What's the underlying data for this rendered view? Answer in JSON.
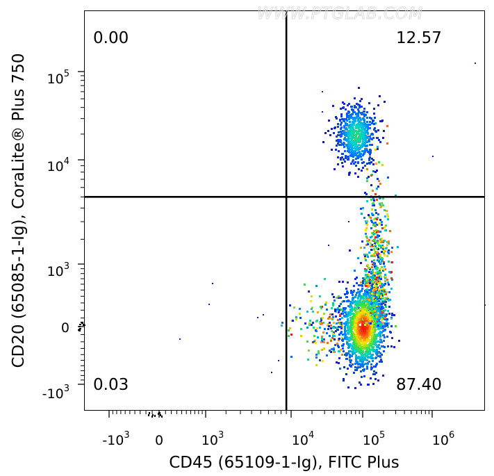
{
  "watermark": "WWW.PTGLAB.COM",
  "chart_data": {
    "type": "scatter",
    "subtype": "flow-cytometry-pseudocolor-density",
    "xlabel": "CD45 (65109-1-Ig), FITC Plus",
    "ylabel": "CD20 (65085-1-Ig), CoraLite® Plus 750",
    "x_scale": "biexponential",
    "y_scale": "biexponential",
    "x_ticks": [
      {
        "base": "-10",
        "exp": "3"
      },
      {
        "base": "0",
        "exp": ""
      },
      {
        "base": "10",
        "exp": "3"
      },
      {
        "base": "10",
        "exp": "4"
      },
      {
        "base": "10",
        "exp": "5"
      },
      {
        "base": "10",
        "exp": "6"
      }
    ],
    "y_ticks": [
      {
        "base": "-10",
        "exp": "3"
      },
      {
        "base": "0",
        "exp": ""
      },
      {
        "base": "10",
        "exp": "3"
      },
      {
        "base": "10",
        "exp": "4"
      },
      {
        "base": "10",
        "exp": "5"
      }
    ],
    "gate": {
      "x": 9000,
      "y": 5000
    },
    "quadrants": [
      {
        "position": "top-left",
        "percent": "0.00"
      },
      {
        "position": "top-right",
        "percent": "12.57"
      },
      {
        "position": "bottom-left",
        "percent": "0.03"
      },
      {
        "position": "bottom-right",
        "percent": "87.40"
      }
    ],
    "populations": [
      {
        "name_hint": "CD45+ CD20+",
        "x_center": 80000,
        "y_center": 20000
      },
      {
        "name_hint": "CD45+ CD20-",
        "x_center": 100000,
        "y_center": 0
      }
    ],
    "grid": false,
    "legend": "none"
  }
}
